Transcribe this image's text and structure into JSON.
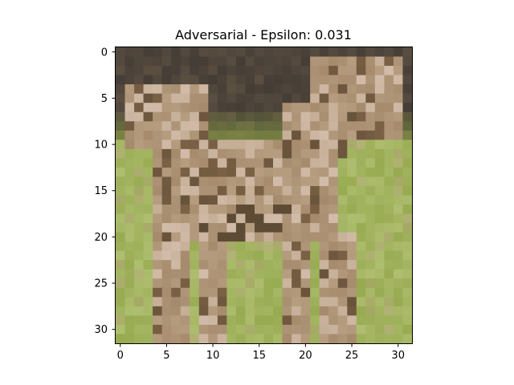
{
  "figure": {
    "title": "Adversarial - Epsilon: 0.031"
  },
  "axes": {
    "x_ticks": [
      "0",
      "5",
      "10",
      "15",
      "20",
      "25",
      "30"
    ],
    "y_ticks": [
      "0",
      "5",
      "10",
      "15",
      "20",
      "25",
      "30"
    ],
    "grid": false
  },
  "image": {
    "description_colors": {
      "background_top": "#3a3530",
      "grass": "#8fa446",
      "grass_light": "#b6c47a",
      "dog_fur": "#b9a083",
      "dog_fur_light": "#d8c3b3",
      "dog_fur_dark": "#8c6e4f",
      "shadow": "#4a3c2a"
    }
  }
}
